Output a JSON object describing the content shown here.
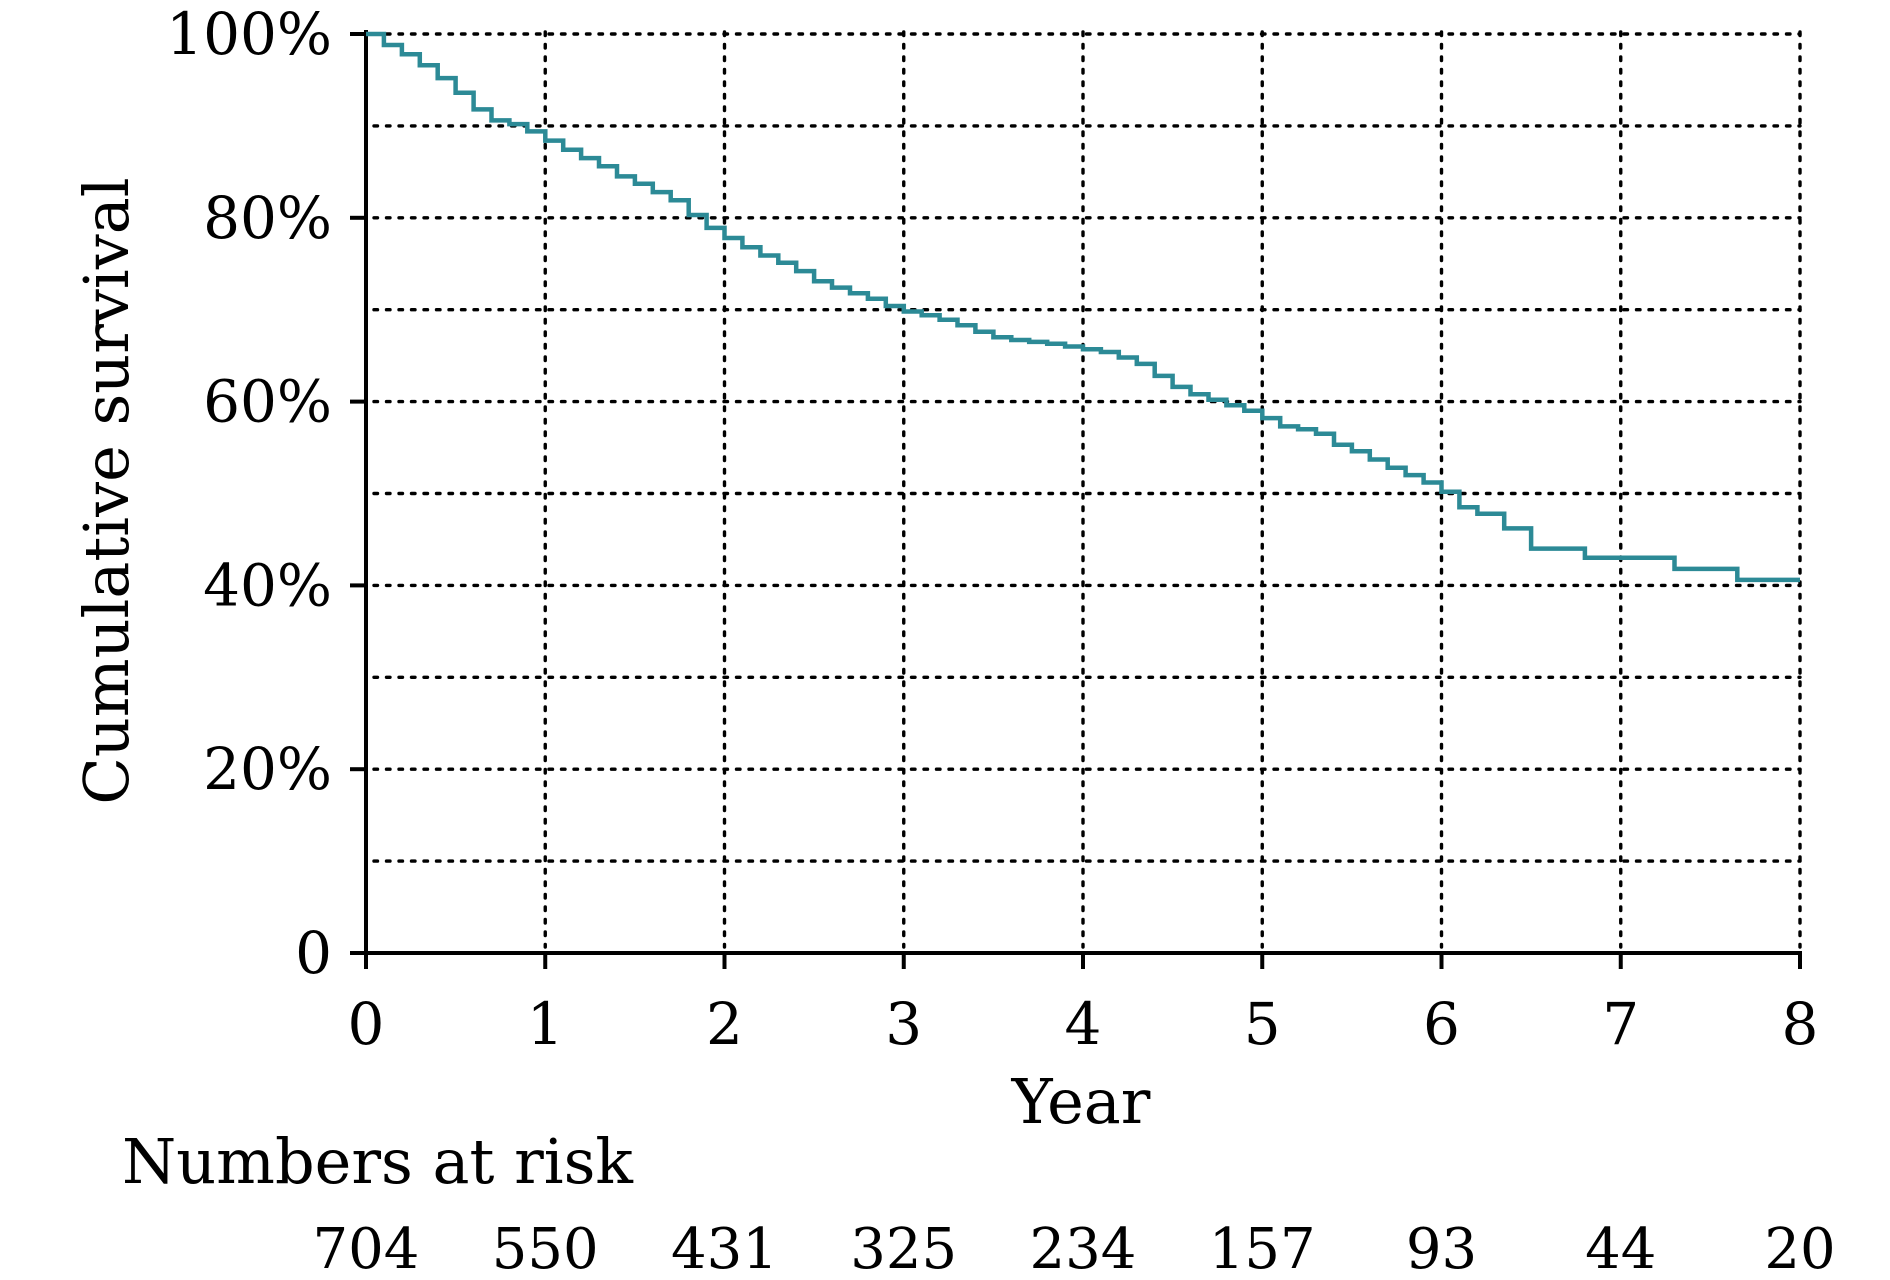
{
  "chart_data": {
    "type": "line",
    "title": "",
    "xlabel": "Year",
    "ylabel": "Cumulative survival",
    "xlim": [
      0,
      8
    ],
    "ylim": [
      0,
      100
    ],
    "x_ticks": [
      "0",
      "1",
      "2",
      "3",
      "4",
      "5",
      "6",
      "7",
      "8"
    ],
    "y_ticks": [
      {
        "value": 0,
        "label": "0"
      },
      {
        "value": 20,
        "label": "20%"
      },
      {
        "value": 40,
        "label": "40%"
      },
      {
        "value": 60,
        "label": "60%"
      },
      {
        "value": 80,
        "label": "80%"
      },
      {
        "value": 100,
        "label": "100%"
      }
    ],
    "grid": true,
    "line_color": "#2c8a96",
    "series": [
      {
        "step": true,
        "x": [
          0,
          0.1,
          0.2,
          0.3,
          0.4,
          0.5,
          0.6,
          0.7,
          0.8,
          0.9,
          1.0,
          1.1,
          1.2,
          1.3,
          1.4,
          1.5,
          1.6,
          1.7,
          1.8,
          1.9,
          2.0,
          2.1,
          2.2,
          2.3,
          2.4,
          2.5,
          2.6,
          2.7,
          2.8,
          2.9,
          3.0,
          3.1,
          3.2,
          3.3,
          3.4,
          3.5,
          3.6,
          3.7,
          3.8,
          3.9,
          4.0,
          4.1,
          4.2,
          4.3,
          4.4,
          4.5,
          4.6,
          4.7,
          4.8,
          4.9,
          5.0,
          5.1,
          5.2,
          5.3,
          5.4,
          5.5,
          5.6,
          5.7,
          5.8,
          5.9,
          6.0,
          6.1,
          6.2,
          6.35,
          6.5,
          6.8,
          7.3,
          7.65,
          8.0
        ],
        "y": [
          100,
          98.8,
          97.8,
          96.6,
          95.2,
          93.6,
          91.8,
          90.6,
          90.2,
          89.4,
          88.4,
          87.4,
          86.5,
          85.6,
          84.5,
          83.7,
          82.8,
          81.9,
          80.3,
          78.9,
          77.8,
          76.8,
          75.9,
          75.1,
          74.2,
          73.1,
          72.4,
          71.8,
          71.2,
          70.4,
          69.8,
          69.4,
          68.9,
          68.3,
          67.6,
          67.0,
          66.7,
          66.5,
          66.3,
          66.0,
          65.7,
          65.4,
          64.8,
          64.1,
          62.8,
          61.6,
          60.8,
          60.2,
          59.6,
          59.0,
          58.2,
          57.3,
          57.0,
          56.5,
          55.3,
          54.6,
          53.7,
          52.8,
          52.0,
          51.2,
          50.2,
          48.5,
          47.8,
          46.2,
          44.0,
          43.0,
          41.8,
          40.6,
          40.6
        ]
      }
    ],
    "risk_table": {
      "title": "Numbers at risk",
      "values": [
        "704",
        "550",
        "431",
        "325",
        "234",
        "157",
        "93",
        "44",
        "20"
      ]
    }
  }
}
